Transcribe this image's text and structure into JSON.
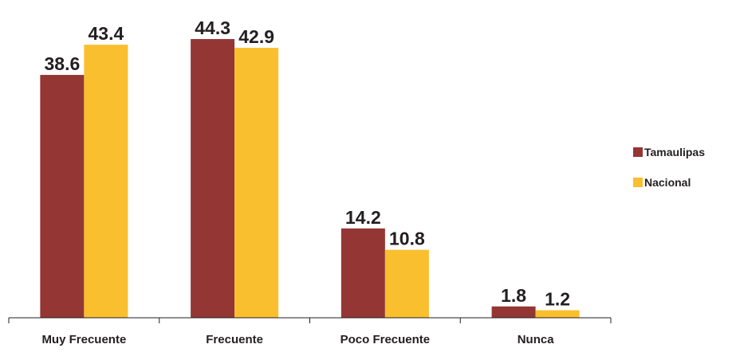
{
  "chart_data": {
    "type": "bar",
    "title": "",
    "xlabel": "",
    "ylabel": "",
    "ylim": [
      0,
      45
    ],
    "grid": false,
    "legend_position": "right",
    "categories": [
      "Muy Frecuente",
      "Frecuente",
      "Poco Frecuente",
      "Nunca"
    ],
    "series": [
      {
        "name": "Tamaulipas",
        "color": "#943634",
        "values": [
          38.6,
          44.3,
          14.2,
          1.8
        ],
        "labels": [
          "38.6",
          "44.3",
          "14.2",
          "1.8"
        ]
      },
      {
        "name": "Nacional",
        "color": "#f9bf2e",
        "values": [
          43.4,
          42.9,
          10.8,
          1.2
        ],
        "labels": [
          "43.4",
          "42.9",
          "10.8",
          "1.2"
        ]
      }
    ]
  }
}
